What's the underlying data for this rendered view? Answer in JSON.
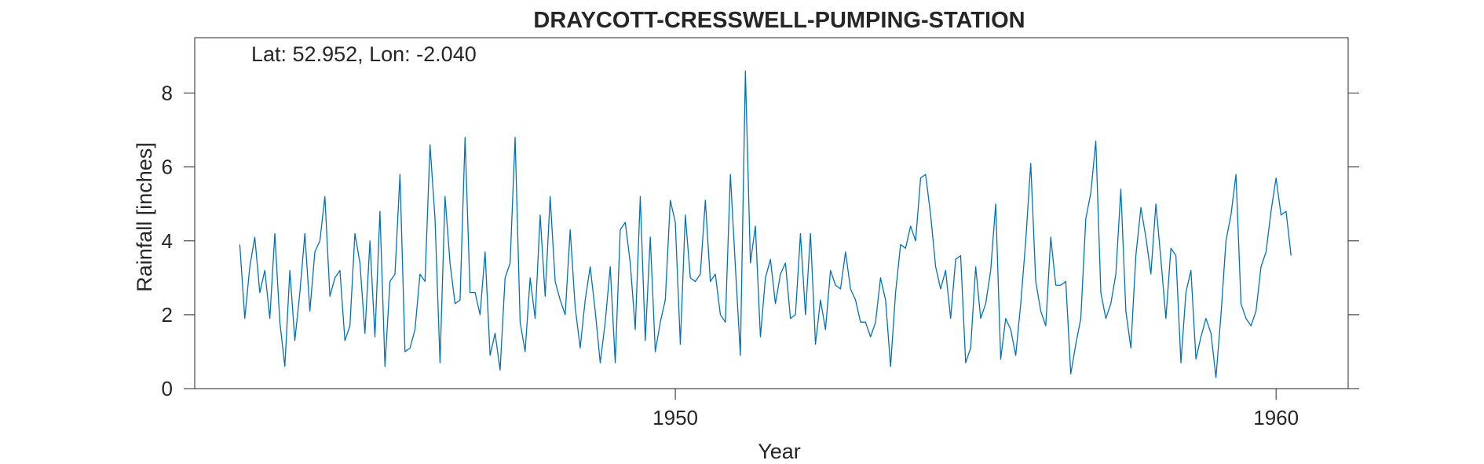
{
  "chart_data": {
    "type": "line",
    "title": "DRAYCOTT-CRESSWELL-PUMPING-STATION",
    "annotation": "Lat: 52.952, Lon: -2.040",
    "xlabel": "Year",
    "ylabel": "Rainfall [inches]",
    "x_ticks": [
      {
        "value": 1950,
        "label": "1950"
      },
      {
        "value": 1960,
        "label": "1960"
      }
    ],
    "y_ticks": [
      {
        "value": 0,
        "label": "0"
      },
      {
        "value": 2,
        "label": "2"
      },
      {
        "value": 4,
        "label": "4"
      },
      {
        "value": 6,
        "label": "6"
      },
      {
        "value": 8,
        "label": "8"
      }
    ],
    "xlim": [
      1942.0,
      1961.2
    ],
    "ylim": [
      0,
      9.5
    ],
    "x_start": 1942.75,
    "x_step_years": 0.08333,
    "line_color": "#0072bd",
    "series": [
      {
        "values": [
          3.9,
          1.9,
          3.3,
          4.1,
          2.6,
          3.2,
          1.9,
          4.2,
          1.8,
          0.6,
          3.2,
          1.3,
          2.6,
          4.2,
          2.1,
          3.7,
          4.0,
          5.2,
          2.5,
          3.0,
          3.2,
          1.3,
          1.7,
          4.2,
          3.4,
          1.5,
          4.0,
          1.4,
          4.8,
          0.6,
          2.9,
          3.1,
          5.8,
          1.0,
          1.1,
          1.6,
          3.1,
          2.9,
          6.6,
          4.6,
          0.7,
          5.2,
          3.4,
          2.3,
          2.4,
          6.8,
          2.6,
          2.6,
          2.0,
          3.7,
          0.9,
          1.5,
          0.5,
          3.0,
          3.4,
          6.8,
          1.8,
          1.0,
          3.0,
          1.9,
          4.7,
          2.5,
          5.2,
          2.9,
          2.4,
          2.0,
          4.3,
          2.2,
          1.1,
          2.4,
          3.3,
          2.1,
          0.7,
          1.8,
          3.3,
          0.7,
          4.3,
          4.5,
          3.4,
          1.6,
          5.2,
          1.3,
          4.1,
          1.0,
          1.8,
          2.4,
          5.1,
          4.5,
          1.2,
          4.7,
          3.0,
          2.9,
          3.1,
          5.1,
          2.9,
          3.1,
          2.0,
          1.8,
          5.8,
          3.3,
          0.9,
          8.6,
          3.4,
          4.4,
          1.4,
          3.0,
          3.5,
          2.3,
          3.1,
          3.4,
          1.9,
          2.0,
          4.2,
          2.0,
          4.2,
          1.2,
          2.4,
          1.6,
          3.2,
          2.8,
          2.7,
          3.7,
          2.7,
          2.4,
          1.8,
          1.8,
          1.4,
          1.8,
          3.0,
          2.4,
          0.6,
          2.6,
          3.9,
          3.8,
          4.4,
          4.0,
          5.7,
          5.8,
          4.7,
          3.3,
          2.7,
          3.2,
          1.9,
          3.5,
          3.6,
          0.7,
          1.1,
          3.3,
          1.9,
          2.3,
          3.2,
          5.0,
          0.8,
          1.9,
          1.6,
          0.9,
          2.3,
          4.0,
          6.1,
          2.9,
          2.1,
          1.7,
          4.1,
          2.8,
          2.8,
          2.9,
          0.4,
          1.2,
          1.9,
          4.6,
          5.3,
          6.7,
          2.6,
          1.9,
          2.3,
          3.1,
          5.4,
          2.1,
          1.1,
          3.6,
          4.9,
          4.1,
          3.1,
          5.0,
          3.5,
          1.9,
          3.8,
          3.6,
          0.7,
          2.6,
          3.2,
          0.8,
          1.4,
          1.9,
          1.5,
          0.3,
          2.0,
          4.0,
          4.7,
          5.8,
          2.3,
          1.9,
          1.7,
          2.1,
          3.3,
          3.7,
          4.8,
          5.7,
          4.7,
          4.8,
          3.6
        ]
      }
    ]
  }
}
